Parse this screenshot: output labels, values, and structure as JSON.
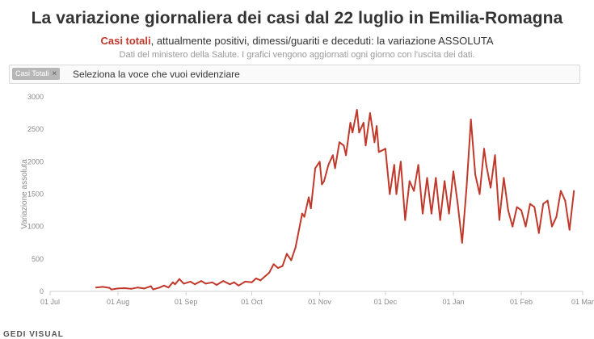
{
  "header": {
    "title": "La variazione giornaliera dei casi dal 22 luglio in Emilia-Romagna",
    "subtitle_highlight": "Casi totali",
    "subtitle_rest": ", attualmente positivi, dimessi/guariti e deceduti: la variazione ASSOLUTA",
    "note": "Dati del ministero della Salute. I grafici vengono aggiornati ogni giorno con l'uscita dei dati."
  },
  "filter": {
    "chip_label": "Casi Totali",
    "chip_close": "×",
    "placeholder": "Seleziona la voce che vuoi evidenziare"
  },
  "brand": "GEDI VISUAL",
  "colors": {
    "line": "#c0392b",
    "highlight": "#c0392b"
  },
  "chart_data": {
    "type": "line",
    "title": "La variazione giornaliera dei casi dal 22 luglio in Emilia-Romagna",
    "xlabel": "",
    "ylabel": "Variazione assoluta",
    "ylim": [
      0,
      3000
    ],
    "yticks": [
      0,
      500,
      1000,
      1500,
      2000,
      2500,
      3000
    ],
    "xlim": [
      "2020-07-01",
      "2021-03-01"
    ],
    "xticks": [
      {
        "date": "2020-07-01",
        "label": "01 Jul"
      },
      {
        "date": "2020-08-01",
        "label": "01 Aug"
      },
      {
        "date": "2020-09-01",
        "label": "01 Sep"
      },
      {
        "date": "2020-10-01",
        "label": "01 Oct"
      },
      {
        "date": "2020-11-01",
        "label": "01 Nov"
      },
      {
        "date": "2020-12-01",
        "label": "01 Dec"
      },
      {
        "date": "2021-01-01",
        "label": "01 Jan"
      },
      {
        "date": "2021-02-01",
        "label": "01 Feb"
      },
      {
        "date": "2021-03-01",
        "label": "01 Mar"
      }
    ],
    "grid": false,
    "series": [
      {
        "name": "Casi Totali",
        "color": "#c0392b",
        "points": [
          [
            "2020-07-22",
            60
          ],
          [
            "2020-07-25",
            70
          ],
          [
            "2020-07-28",
            55
          ],
          [
            "2020-07-29",
            30
          ],
          [
            "2020-08-01",
            45
          ],
          [
            "2020-08-04",
            50
          ],
          [
            "2020-08-07",
            40
          ],
          [
            "2020-08-10",
            60
          ],
          [
            "2020-08-13",
            45
          ],
          [
            "2020-08-16",
            80
          ],
          [
            "2020-08-17",
            30
          ],
          [
            "2020-08-20",
            60
          ],
          [
            "2020-08-22",
            90
          ],
          [
            "2020-08-24",
            60
          ],
          [
            "2020-08-26",
            140
          ],
          [
            "2020-08-27",
            110
          ],
          [
            "2020-08-29",
            190
          ],
          [
            "2020-08-31",
            120
          ],
          [
            "2020-09-03",
            150
          ],
          [
            "2020-09-05",
            110
          ],
          [
            "2020-09-08",
            160
          ],
          [
            "2020-09-10",
            120
          ],
          [
            "2020-09-13",
            140
          ],
          [
            "2020-09-15",
            100
          ],
          [
            "2020-09-18",
            160
          ],
          [
            "2020-09-21",
            110
          ],
          [
            "2020-09-23",
            140
          ],
          [
            "2020-09-25",
            90
          ],
          [
            "2020-09-28",
            150
          ],
          [
            "2020-10-01",
            140
          ],
          [
            "2020-10-03",
            200
          ],
          [
            "2020-10-05",
            170
          ],
          [
            "2020-10-07",
            230
          ],
          [
            "2020-10-09",
            290
          ],
          [
            "2020-10-11",
            420
          ],
          [
            "2020-10-13",
            360
          ],
          [
            "2020-10-15",
            390
          ],
          [
            "2020-10-17",
            580
          ],
          [
            "2020-10-19",
            480
          ],
          [
            "2020-10-21",
            680
          ],
          [
            "2020-10-22",
            850
          ],
          [
            "2020-10-24",
            1200
          ],
          [
            "2020-10-25",
            1150
          ],
          [
            "2020-10-27",
            1450
          ],
          [
            "2020-10-28",
            1280
          ],
          [
            "2020-10-30",
            1900
          ],
          [
            "2020-11-01",
            2000
          ],
          [
            "2020-11-02",
            1650
          ],
          [
            "2020-11-03",
            1700
          ],
          [
            "2020-11-05",
            1950
          ],
          [
            "2020-11-07",
            2100
          ],
          [
            "2020-11-08",
            1900
          ],
          [
            "2020-11-10",
            2300
          ],
          [
            "2020-11-12",
            2250
          ],
          [
            "2020-11-13",
            2100
          ],
          [
            "2020-11-15",
            2600
          ],
          [
            "2020-11-16",
            2450
          ],
          [
            "2020-11-18",
            2800
          ],
          [
            "2020-11-19",
            2450
          ],
          [
            "2020-11-21",
            2600
          ],
          [
            "2020-11-22",
            2250
          ],
          [
            "2020-11-24",
            2750
          ],
          [
            "2020-11-26",
            2300
          ],
          [
            "2020-11-27",
            2550
          ],
          [
            "2020-11-28",
            2150
          ],
          [
            "2020-12-01",
            2200
          ],
          [
            "2020-12-03",
            1500
          ],
          [
            "2020-12-05",
            1950
          ],
          [
            "2020-12-06",
            1500
          ],
          [
            "2020-12-08",
            2000
          ],
          [
            "2020-12-10",
            1100
          ],
          [
            "2020-12-12",
            1700
          ],
          [
            "2020-12-14",
            1550
          ],
          [
            "2020-12-16",
            1950
          ],
          [
            "2020-12-18",
            1200
          ],
          [
            "2020-12-20",
            1750
          ],
          [
            "2020-12-22",
            1200
          ],
          [
            "2020-12-24",
            1750
          ],
          [
            "2020-12-26",
            1100
          ],
          [
            "2020-12-28",
            1700
          ],
          [
            "2020-12-30",
            1200
          ],
          [
            "2021-01-01",
            1850
          ],
          [
            "2021-01-03",
            1350
          ],
          [
            "2021-01-05",
            750
          ],
          [
            "2021-01-07",
            1600
          ],
          [
            "2021-01-09",
            2650
          ],
          [
            "2021-01-11",
            1800
          ],
          [
            "2021-01-13",
            1500
          ],
          [
            "2021-01-15",
            2200
          ],
          [
            "2021-01-16",
            1950
          ],
          [
            "2021-01-18",
            1600
          ],
          [
            "2021-01-20",
            2100
          ],
          [
            "2021-01-22",
            1100
          ],
          [
            "2021-01-24",
            1750
          ],
          [
            "2021-01-26",
            1250
          ],
          [
            "2021-01-28",
            1000
          ],
          [
            "2021-01-30",
            1300
          ],
          [
            "2021-02-01",
            1250
          ],
          [
            "2021-02-03",
            1000
          ],
          [
            "2021-02-05",
            1350
          ],
          [
            "2021-02-07",
            1300
          ],
          [
            "2021-02-09",
            900
          ],
          [
            "2021-02-11",
            1350
          ],
          [
            "2021-02-13",
            1400
          ],
          [
            "2021-02-15",
            1000
          ],
          [
            "2021-02-17",
            1150
          ],
          [
            "2021-02-19",
            1550
          ],
          [
            "2021-02-21",
            1400
          ],
          [
            "2021-02-23",
            950
          ],
          [
            "2021-02-25",
            1550
          ]
        ]
      }
    ]
  }
}
